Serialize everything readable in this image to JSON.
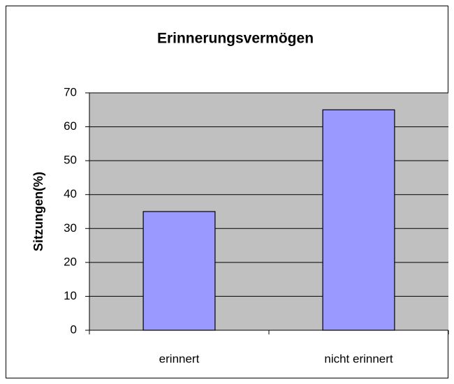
{
  "chart_data": {
    "type": "bar",
    "title": "Erinnerungsvermögen",
    "ylabel": "Sitzungen(%)",
    "categories": [
      "erinnert",
      "nicht erinnert"
    ],
    "values": [
      35,
      65
    ],
    "color": "#9999ff",
    "ylim": [
      0,
      70
    ],
    "yticks": [
      0,
      10,
      20,
      30,
      40,
      50,
      60,
      70
    ],
    "grid": true
  }
}
